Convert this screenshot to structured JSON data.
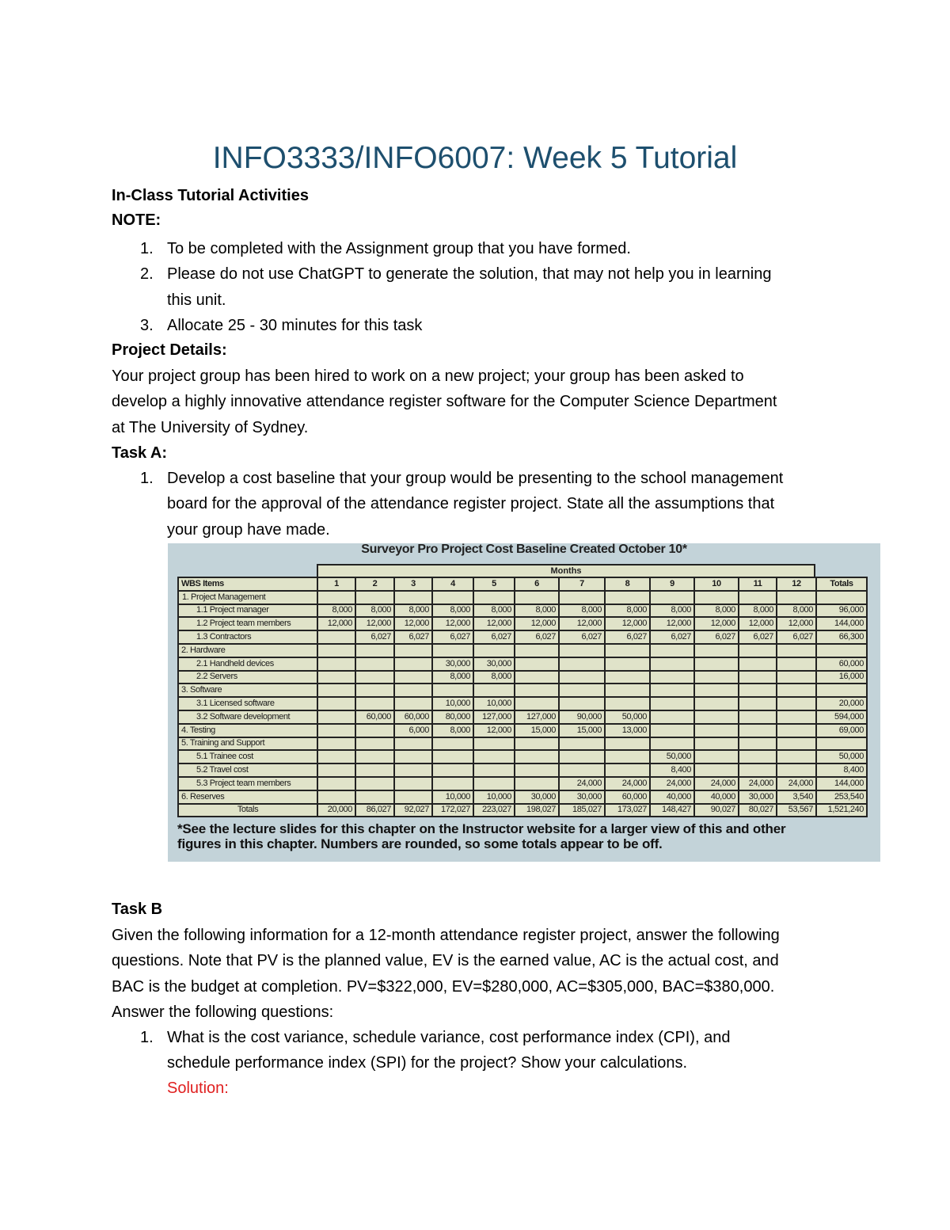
{
  "title": "INFO3333/INFO6007: Week 5 Tutorial",
  "section_heading": "In-Class Tutorial Activities",
  "note_label": "NOTE:",
  "notes": [
    {
      "num": "1.",
      "lines": [
        "To be completed with the Assignment group that you have formed."
      ]
    },
    {
      "num": "2.",
      "lines": [
        "Please do not use ChatGPT to generate the solution, that may not help you in learning",
        "this unit."
      ]
    },
    {
      "num": "3.",
      "lines": [
        "Allocate 25 - 30 minutes for this task"
      ]
    }
  ],
  "project_label": "Project Details:",
  "project_lines": [
    "Your project group has been hired to work on a new project; your group has been asked to",
    "develop a highly innovative attendance register software for the Computer Science Department",
    "at The University of Sydney."
  ],
  "task_a": {
    "label": "Task A:",
    "num": "1.",
    "lines": [
      "Develop a cost baseline that your group would be presenting to the school management",
      "board for the approval of the attendance register project. State all the assumptions that",
      "your group have made."
    ]
  },
  "figure": {
    "title": "Surveyor Pro Project Cost Baseline Created October 10*",
    "months_label": "Months",
    "header": [
      "WBS Items",
      "1",
      "2",
      "3",
      "4",
      "5",
      "6",
      "7",
      "8",
      "9",
      "10",
      "11",
      "12",
      "Totals"
    ],
    "rows": [
      {
        "label": "1.  Project Management",
        "indent": 1,
        "values": [
          "",
          "",
          "",
          "",
          "",
          "",
          "",
          "",
          "",
          "",
          "",
          "",
          ""
        ]
      },
      {
        "label": "1.1 Project manager",
        "indent": 2,
        "values": [
          "8,000",
          "8,000",
          "8,000",
          "8,000",
          "8,000",
          "8,000",
          "8,000",
          "8,000",
          "8,000",
          "8,000",
          "8,000",
          "8,000",
          "96,000"
        ]
      },
      {
        "label": "1.2 Project team members",
        "indent": 2,
        "values": [
          "12,000",
          "12,000",
          "12,000",
          "12,000",
          "12,000",
          "12,000",
          "12,000",
          "12,000",
          "12,000",
          "12,000",
          "12,000",
          "12,000",
          "144,000"
        ]
      },
      {
        "label": "1.3 Contractors",
        "indent": 2,
        "values": [
          "",
          "6,027",
          "6,027",
          "6,027",
          "6,027",
          "6,027",
          "6,027",
          "6,027",
          "6,027",
          "6,027",
          "6,027",
          "6,027",
          "66,300"
        ]
      },
      {
        "label": "2. Hardware",
        "indent": 0,
        "values": [
          "",
          "",
          "",
          "",
          "",
          "",
          "",
          "",
          "",
          "",
          "",
          "",
          ""
        ]
      },
      {
        "label": "2.1 Handheld devices",
        "indent": 2,
        "values": [
          "",
          "",
          "",
          "30,000",
          "30,000",
          "",
          "",
          "",
          "",
          "",
          "",
          "",
          "60,000"
        ]
      },
      {
        "label": "2.2 Servers",
        "indent": 2,
        "values": [
          "",
          "",
          "",
          "8,000",
          "8,000",
          "",
          "",
          "",
          "",
          "",
          "",
          "",
          "16,000"
        ]
      },
      {
        "label": "3. Software",
        "indent": 0,
        "values": [
          "",
          "",
          "",
          "",
          "",
          "",
          "",
          "",
          "",
          "",
          "",
          "",
          ""
        ]
      },
      {
        "label": "3.1 Licensed software",
        "indent": 2,
        "values": [
          "",
          "",
          "",
          "10,000",
          "10,000",
          "",
          "",
          "",
          "",
          "",
          "",
          "",
          "20,000"
        ]
      },
      {
        "label": "3.2 Software development",
        "indent": 2,
        "values": [
          "",
          "60,000",
          "60,000",
          "80,000",
          "127,000",
          "127,000",
          "90,000",
          "50,000",
          "",
          "",
          "",
          "",
          "594,000"
        ]
      },
      {
        "label": "4. Testing",
        "indent": 0,
        "values": [
          "",
          "",
          "6,000",
          "8,000",
          "12,000",
          "15,000",
          "15,000",
          "13,000",
          "",
          "",
          "",
          "",
          "69,000"
        ]
      },
      {
        "label": "5. Training and Support",
        "indent": 0,
        "values": [
          "",
          "",
          "",
          "",
          "",
          "",
          "",
          "",
          "",
          "",
          "",
          "",
          ""
        ]
      },
      {
        "label": "5.1 Trainee cost",
        "indent": 2,
        "values": [
          "",
          "",
          "",
          "",
          "",
          "",
          "",
          "",
          "50,000",
          "",
          "",
          "",
          "50,000"
        ]
      },
      {
        "label": "5.2 Travel cost",
        "indent": 2,
        "values": [
          "",
          "",
          "",
          "",
          "",
          "",
          "",
          "",
          "8,400",
          "",
          "",
          "",
          "8,400"
        ]
      },
      {
        "label": "5.3 Project team members",
        "indent": 2,
        "values": [
          "",
          "",
          "",
          "",
          "",
          "",
          "24,000",
          "24,000",
          "24,000",
          "24,000",
          "24,000",
          "24,000",
          "144,000"
        ]
      },
      {
        "label": "6. Reserves",
        "indent": 0,
        "values": [
          "",
          "",
          "",
          "10,000",
          "10,000",
          "30,000",
          "30,000",
          "60,000",
          "40,000",
          "40,000",
          "30,000",
          "3,540",
          "253,540"
        ]
      },
      {
        "label": "Totals",
        "indent": -1,
        "values": [
          "20,000",
          "86,027",
          "92,027",
          "172,027",
          "223,027",
          "198,027",
          "185,027",
          "173,027",
          "148,427",
          "90,027",
          "80,027",
          "53,567",
          "1,521,240"
        ]
      }
    ],
    "note_lines": [
      "*See the lecture slides for this chapter on the Instructor website for a larger view of this and other",
      "figures in this chapter. Numbers are rounded, so some totals appear to be off."
    ]
  },
  "task_b": {
    "label": "Task B",
    "lines": [
      "Given the following information for a 12-month attendance register project, answer the following",
      "questions. Note that PV is the planned value, EV is the earned value, AC is the actual cost, and",
      "BAC is the budget at completion. PV=$322,000, EV=$280,000, AC=$305,000, BAC=$380,000.",
      "Answer the following questions:"
    ],
    "num": "1.",
    "q_lines": [
      "What is the cost variance, schedule variance, cost performance index (CPI), and",
      "schedule performance index (SPI) for the project? Show your calculations."
    ],
    "solution_label": "Solution:"
  },
  "colors": {
    "title": "#1d4f6e",
    "solution": "#e02020",
    "figure_bg": "#c3d3d9",
    "table_bg": "#e0e3c9"
  }
}
